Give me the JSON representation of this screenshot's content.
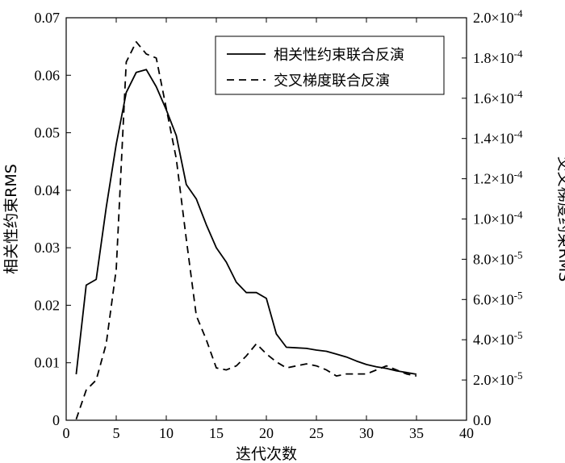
{
  "chart_data": {
    "type": "line",
    "xlabel": "迭代次数",
    "ylabel_left": "相关性约束RMS",
    "ylabel_right": "交叉梯度约束RMS",
    "xlim": [
      0,
      40
    ],
    "ylim_left": [
      0,
      0.07
    ],
    "ylim_right": [
      0,
      0.0002
    ],
    "x_ticks": [
      0,
      5,
      10,
      15,
      20,
      25,
      30,
      35,
      40
    ],
    "x_tick_labels": [
      "0",
      "5",
      "10",
      "15",
      "20",
      "25",
      "30",
      "35",
      "40"
    ],
    "y_left_ticks": [
      0,
      0.01,
      0.02,
      0.03,
      0.04,
      0.05,
      0.06,
      0.07
    ],
    "y_left_tick_labels": [
      "0",
      "0.01",
      "0.02",
      "0.03",
      "0.04",
      "0.05",
      "0.06",
      "0.07"
    ],
    "y_right_ticks": [
      0,
      2e-05,
      4e-05,
      6e-05,
      8e-05,
      0.0001,
      0.00012,
      0.00014,
      0.00016,
      0.00018,
      0.0002
    ],
    "y_right_tick_labels": [
      {
        "mant": "0.0",
        "exp": ""
      },
      {
        "mant": "2.0×10",
        "exp": "-5"
      },
      {
        "mant": "4.0×10",
        "exp": "-5"
      },
      {
        "mant": "6.0×10",
        "exp": "-5"
      },
      {
        "mant": "8.0×10",
        "exp": "-5"
      },
      {
        "mant": "1.0×10",
        "exp": "-4"
      },
      {
        "mant": "1.2×10",
        "exp": "-4"
      },
      {
        "mant": "1.4×10",
        "exp": "-4"
      },
      {
        "mant": "1.6×10",
        "exp": "-4"
      },
      {
        "mant": "1.8×10",
        "exp": "-4"
      },
      {
        "mant": "2.0×10",
        "exp": "-4"
      }
    ],
    "legend_position": "top-right",
    "series": [
      {
        "name": "相关性约束联合反演",
        "axis": "left",
        "style": "solid",
        "x": [
          1,
          2,
          3,
          4,
          5,
          6,
          7,
          8,
          9,
          10,
          11,
          12,
          13,
          14,
          15,
          16,
          17,
          18,
          19,
          20,
          21,
          22,
          23,
          24,
          25,
          26,
          27,
          28,
          29,
          30,
          31,
          32,
          33,
          34,
          35
        ],
        "values": [
          0.008,
          0.0235,
          0.0245,
          0.037,
          0.048,
          0.057,
          0.0605,
          0.061,
          0.058,
          0.054,
          0.0495,
          0.041,
          0.0385,
          0.034,
          0.03,
          0.0275,
          0.024,
          0.0222,
          0.0222,
          0.0212,
          0.015,
          0.0127,
          0.0126,
          0.0125,
          0.0122,
          0.012,
          0.0115,
          0.011,
          0.0103,
          0.0097,
          0.0093,
          0.009,
          0.0086,
          0.0083,
          0.008
        ]
      },
      {
        "name": "交叉梯度联合反演",
        "axis": "right",
        "style": "dashed",
        "x": [
          1,
          2,
          3,
          4,
          5,
          6,
          7,
          8,
          9,
          10,
          11,
          12,
          13,
          14,
          15,
          16,
          17,
          18,
          19,
          20,
          21,
          22,
          23,
          24,
          25,
          26,
          27,
          28,
          29,
          30,
          31,
          32,
          33,
          34,
          35
        ],
        "values": [
          5e-07,
          1.5e-05,
          2e-05,
          3.8e-05,
          7.5e-05,
          0.000178,
          0.000188,
          0.000182,
          0.00018,
          0.000155,
          0.00013,
          9e-05,
          5.2e-05,
          4e-05,
          2.6e-05,
          2.5e-05,
          2.7e-05,
          3.2e-05,
          3.8e-05,
          3.3e-05,
          2.9e-05,
          2.6e-05,
          2.7e-05,
          2.8e-05,
          2.7e-05,
          2.5e-05,
          2.2e-05,
          2.3e-05,
          2.3e-05,
          2.3e-05,
          2.5e-05,
          2.7e-05,
          2.5e-05,
          2.3e-05,
          2.2e-05
        ]
      }
    ]
  }
}
